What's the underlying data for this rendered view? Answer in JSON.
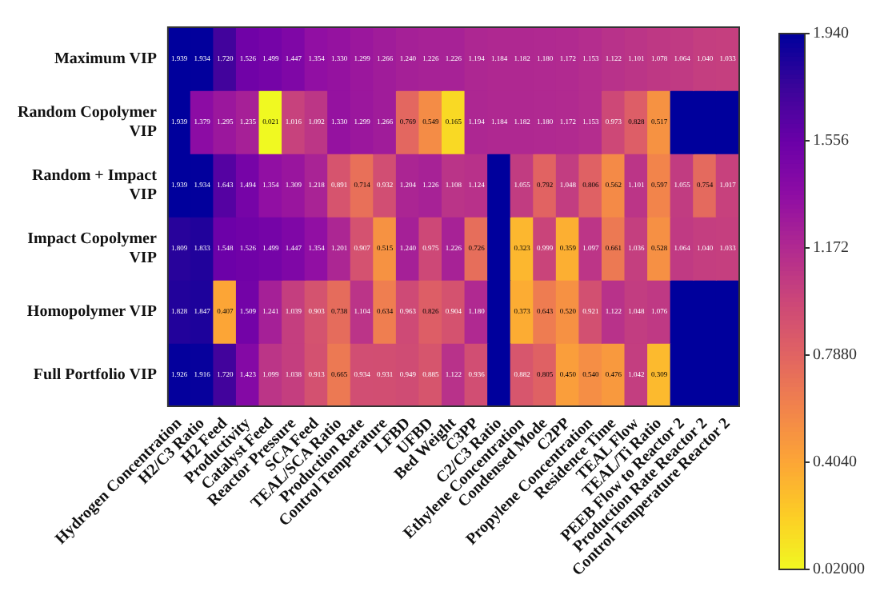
{
  "chart_data": {
    "type": "heatmap",
    "categories": [
      "Hydrogen Concentration",
      "H2/C3 Ratio",
      "H2 Feed",
      "Productivity",
      "Catalyst Feed",
      "Reactor Pressure",
      "SCA Feed",
      "TEAL/SCA Ratio",
      "Production Rate",
      "Control Temperature",
      "LFBD",
      "UFBD",
      "Bed Weight",
      "C3PP",
      "C2/C3 Ratio",
      "Ethylene Concentration",
      "Condensed Mode",
      "C2PP",
      "Propylene Concentration",
      "Residence Time",
      "TEAL Flow",
      "TEAL/Ti Ratio",
      "PEEB Flow to Reactor 2",
      "Production Rate Reactor 2",
      "Control Temperature Reactor 2"
    ],
    "y_categories": [
      "Maximum VIP",
      "Random Copolymer VIP",
      "Random + Impact VIP",
      "Impact Copolymer VIP",
      "Homopolymer VIP",
      "Full Portfolio VIP"
    ],
    "cells": [
      [
        1.939,
        1.934,
        1.72,
        1.526,
        1.499,
        1.447,
        1.354,
        1.33,
        1.299,
        1.266,
        1.24,
        1.226,
        1.226,
        1.194,
        1.184,
        1.182,
        1.18,
        1.172,
        1.153,
        1.122,
        1.101,
        1.078,
        1.064,
        1.04,
        1.033
      ],
      [
        1.939,
        1.379,
        1.295,
        1.235,
        0.021,
        1.016,
        1.092,
        1.33,
        1.299,
        1.266,
        0.769,
        0.549,
        0.165,
        1.194,
        1.184,
        1.182,
        1.18,
        1.172,
        1.153,
        0.973,
        0.828,
        0.517,
        1.94,
        1.94,
        1.94
      ],
      [
        1.939,
        1.934,
        1.643,
        1.494,
        1.354,
        1.309,
        1.218,
        0.891,
        0.714,
        0.932,
        1.204,
        1.226,
        1.108,
        1.124,
        1.94,
        1.055,
        0.792,
        1.048,
        0.806,
        0.562,
        1.101,
        0.597,
        1.055,
        0.754,
        1.017
      ],
      [
        1.809,
        1.833,
        1.548,
        1.526,
        1.499,
        1.447,
        1.354,
        1.201,
        0.907,
        0.515,
        1.24,
        0.975,
        1.226,
        0.726,
        1.94,
        0.323,
        0.999,
        0.359,
        1.097,
        0.661,
        1.036,
        0.528,
        1.064,
        1.04,
        1.033
      ],
      [
        1.828,
        1.847,
        0.407,
        1.509,
        1.241,
        1.039,
        0.903,
        0.738,
        1.104,
        0.634,
        0.963,
        0.826,
        0.904,
        1.18,
        1.94,
        0.373,
        0.643,
        0.52,
        0.921,
        1.122,
        1.048,
        1.076,
        1.94,
        1.94,
        1.94
      ],
      [
        1.926,
        1.916,
        1.72,
        1.423,
        1.099,
        1.038,
        0.913,
        0.665,
        0.934,
        0.931,
        0.949,
        0.885,
        1.122,
        0.936,
        1.94,
        0.882,
        0.805,
        0.45,
        0.54,
        0.476,
        1.042,
        0.309,
        1.94,
        1.94,
        1.94
      ]
    ],
    "cell_labels": [
      [
        "1.939",
        "1.934",
        "1.720",
        "1.526",
        "1.499",
        "1.447",
        "1.354",
        "1.330",
        "1.299",
        "1.266",
        "1.240",
        "1.226",
        "1.226",
        "1.194",
        "1.184",
        "1.182",
        "1.180",
        "1.172",
        "1.153",
        "1.122",
        "1.101",
        "1.078",
        "1.064",
        "1.040",
        "1.033"
      ],
      [
        "1.939",
        "1.379",
        "1.295",
        "1.235",
        "0.021",
        "1.016",
        "1.092",
        "1.330",
        "1.299",
        "1.266",
        "0.769",
        "0.549",
        "0.165",
        "1.194",
        "1.184",
        "1.182",
        "1.180",
        "1.172",
        "1.153",
        "0.973",
        "0.828",
        "0.517",
        null,
        null,
        null
      ],
      [
        "1.939",
        "1.934",
        "1.643",
        "1.494",
        "1.354",
        "1.309",
        "1.218",
        "0.891",
        "0.714",
        "0.932",
        "1.204",
        "1.226",
        "1.108",
        "1.124",
        null,
        "1.055",
        "0.792",
        "1.048",
        "0.806",
        "0.562",
        "1.101",
        "0.597",
        "1.055",
        "0.754",
        "1.017"
      ],
      [
        "1.809",
        "1.833",
        "1.548",
        "1.526",
        "1.499",
        "1.447",
        "1.354",
        "1.201",
        "0.907",
        "0.515",
        "1.240",
        "0.975",
        "1.226",
        "0.726",
        null,
        "0.323",
        "0.999",
        "0.359",
        "1.097",
        "0.661",
        "1.036",
        "0.528",
        "1.064",
        "1.040",
        "1.033"
      ],
      [
        "1.828",
        "1.847",
        "0.407",
        "1.509",
        "1.241",
        "1.039",
        "0.903",
        "0.738",
        "1.104",
        "0.634",
        "0.963",
        "0.826",
        "0.904",
        "1.180",
        null,
        "0.373",
        "0.643",
        "0.520",
        "0.921",
        "1.122",
        "1.048",
        "1.076",
        null,
        null,
        null
      ],
      [
        "1.926",
        "1.916",
        "1.720",
        "1.423",
        "1.099",
        "1.038",
        "0.913",
        "0.665",
        "0.934",
        "0.931",
        "0.949",
        "0.885",
        "1.122",
        "0.936",
        null,
        "0.882",
        "0.805",
        "0.450",
        "0.540",
        "0.476",
        "1.042",
        "0.309",
        null,
        null,
        null
      ]
    ],
    "clim": [
      0.02,
      1.94
    ],
    "cticks": [
      {
        "value": 1.94,
        "label": "1.940"
      },
      {
        "value": 1.556,
        "label": "1.556"
      },
      {
        "value": 1.172,
        "label": "1.172"
      },
      {
        "value": 0.788,
        "label": "0.7880"
      },
      {
        "value": 0.404,
        "label": "0.4040"
      },
      {
        "value": 0.02,
        "label": "0.02000"
      }
    ]
  }
}
